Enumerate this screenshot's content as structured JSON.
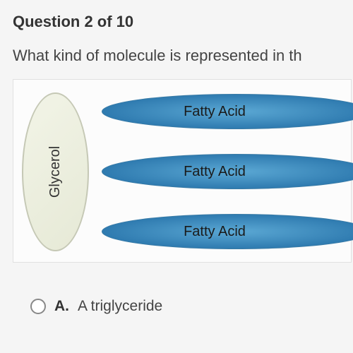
{
  "question": {
    "header": "Question 2 of 10",
    "text": "What kind of molecule is represented in th"
  },
  "diagram": {
    "glycerol_label": "Glycerol",
    "fatty_acids": [
      {
        "label": "Fatty Acid"
      },
      {
        "label": "Fatty Acid"
      },
      {
        "label": "Fatty Acid"
      }
    ],
    "colors": {
      "glycerol_fill": "#e6e9d6",
      "glycerol_border": "#c5c8b5",
      "fatty_acid_inner": "#5ba8d4",
      "fatty_acid_outer": "#2f7bb0",
      "background": "#fcfcfc"
    }
  },
  "answer": {
    "letter": "A.",
    "text": "A triglyceride"
  }
}
